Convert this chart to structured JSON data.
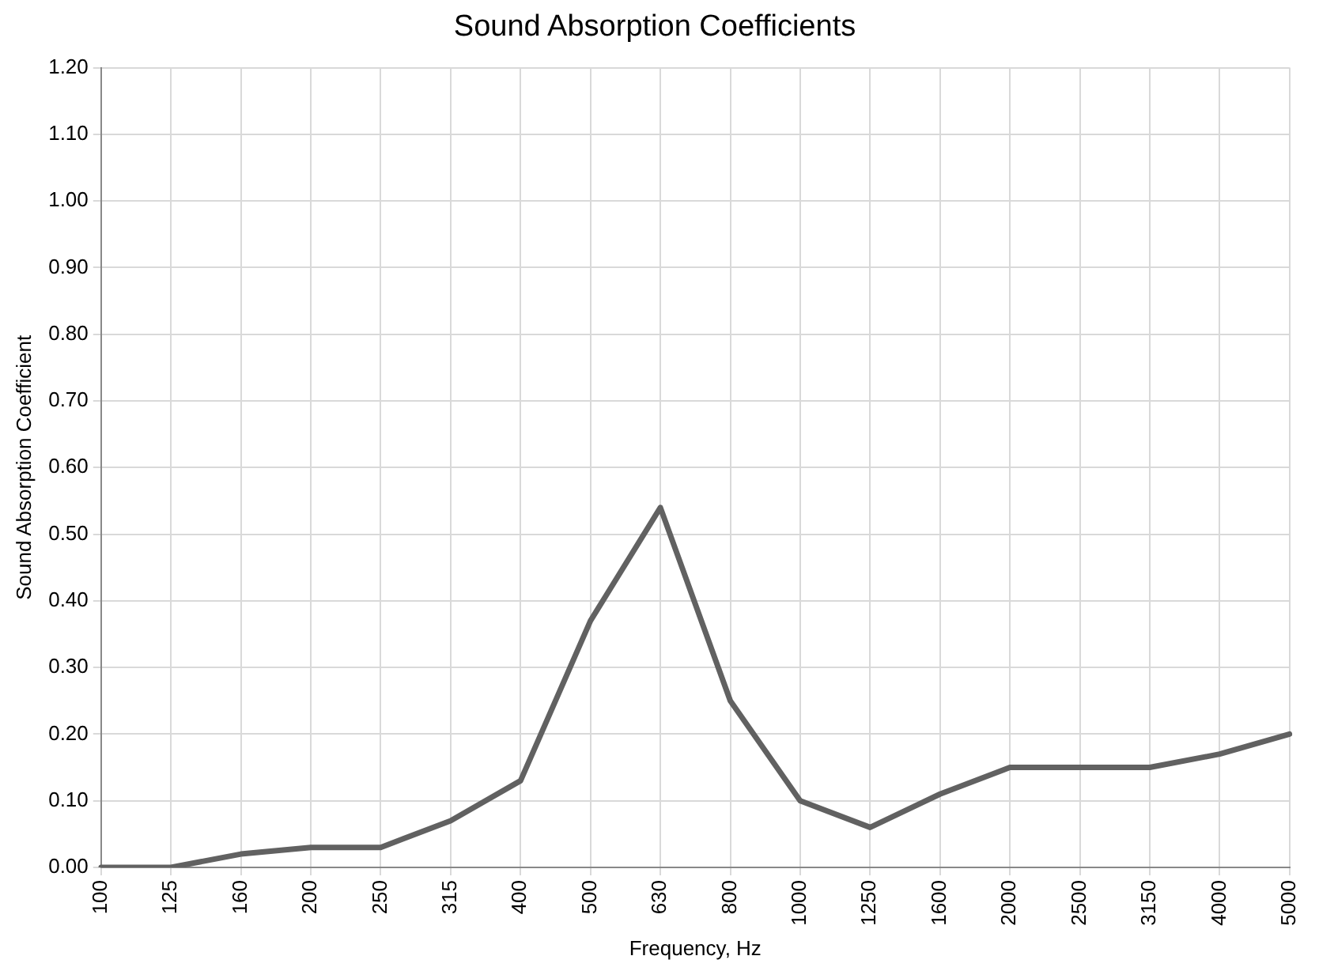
{
  "chart_data": {
    "type": "line",
    "title": "Sound Absorption Coefficients",
    "xlabel": "Frequency, Hz",
    "ylabel": "Sound Absorption Coefficient",
    "categories": [
      "100",
      "125",
      "160",
      "200",
      "250",
      "315",
      "400",
      "500",
      "630",
      "800",
      "1000",
      "1250",
      "1600",
      "2000",
      "2500",
      "3150",
      "4000",
      "5000"
    ],
    "series": [
      {
        "color": "#616161",
        "values": [
          0,
          0,
          0.02,
          0.03,
          0.03,
          0.07,
          0.13,
          0.37,
          0.54,
          0.25,
          0.1,
          0.06,
          0.11,
          0.15,
          0.15,
          0.15,
          0.17,
          0.2
        ]
      }
    ],
    "ylim": [
      0,
      1.2
    ],
    "yticks": [
      {
        "value": 0,
        "label": "0.00"
      },
      {
        "value": 0.1,
        "label": "0.10"
      },
      {
        "value": 0.2,
        "label": "0.20"
      },
      {
        "value": 0.3,
        "label": "0.30"
      },
      {
        "value": 0.4,
        "label": "0.40"
      },
      {
        "value": 0.5,
        "label": "0.50"
      },
      {
        "value": 0.6,
        "label": "0.60"
      },
      {
        "value": 0.7,
        "label": "0.70"
      },
      {
        "value": 0.8,
        "label": "0.80"
      },
      {
        "value": 0.9,
        "label": "0.90"
      },
      {
        "value": 1.0,
        "label": "1.00"
      },
      {
        "value": 1.1,
        "label": "1.10"
      },
      {
        "value": 1.2,
        "label": "1.20"
      }
    ],
    "grid": true,
    "legend": false,
    "marker": "none",
    "line_style": "solid"
  }
}
